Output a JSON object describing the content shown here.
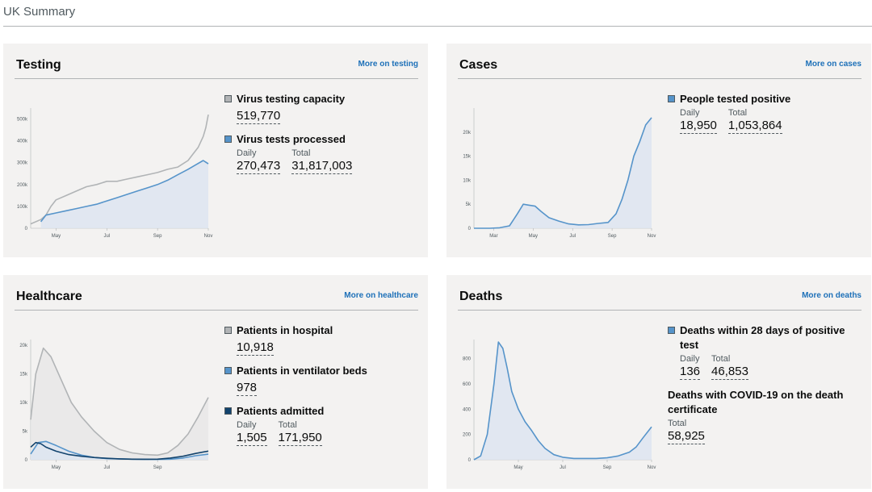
{
  "page": {
    "title": "UK Summary"
  },
  "cards": {
    "testing": {
      "title": "Testing",
      "link": "More on testing",
      "metrics": {
        "capacity": {
          "label": "Virus testing capacity",
          "value": "519,770"
        },
        "processed": {
          "label": "Virus tests processed",
          "daily_label": "Daily",
          "daily": "270,473",
          "total_label": "Total",
          "total": "31,817,003"
        }
      }
    },
    "cases": {
      "title": "Cases",
      "link": "More on cases",
      "metrics": {
        "positive": {
          "label": "People tested positive",
          "daily_label": "Daily",
          "daily": "18,950",
          "total_label": "Total",
          "total": "1,053,864"
        }
      }
    },
    "healthcare": {
      "title": "Healthcare",
      "link": "More on healthcare",
      "metrics": {
        "hospital": {
          "label": "Patients in hospital",
          "value": "10,918"
        },
        "ventilator": {
          "label": "Patients in ventilator beds",
          "value": "978"
        },
        "admitted": {
          "label": "Patients admitted",
          "daily_label": "Daily",
          "daily": "1,505",
          "total_label": "Total",
          "total": "171,950"
        }
      }
    },
    "deaths": {
      "title": "Deaths",
      "link": "More on deaths",
      "metrics": {
        "within28": {
          "label": "Deaths within 28 days of positive test",
          "daily_label": "Daily",
          "daily": "136",
          "total_label": "Total",
          "total": "46,853"
        },
        "certificate": {
          "label": "Deaths with COVID-19 on the death certificate",
          "total_label": "Total",
          "total": "58,925"
        }
      }
    }
  },
  "colors": {
    "grey": "#b1b4b6",
    "blue": "#5694ca",
    "navy": "#12436d",
    "fill": "#dde5f1",
    "link": "#1d70b8"
  },
  "chart_data": [
    {
      "id": "testing",
      "type": "line",
      "x_ticks": [
        "May",
        "Jul",
        "Sep",
        "Nov"
      ],
      "x_tick_pos": [
        1,
        3,
        5,
        7
      ],
      "xlim": [
        0,
        7
      ],
      "ylim": [
        0,
        550000
      ],
      "y_ticks": [
        0,
        100000,
        200000,
        300000,
        400000,
        500000
      ],
      "y_tick_labels": [
        "0",
        "100k",
        "200k",
        "300k",
        "400k",
        "500k"
      ],
      "series": [
        {
          "name": "Virus testing capacity",
          "color": "#b1b4b6",
          "fill": false,
          "x": [
            0,
            0.4,
            0.6,
            0.8,
            1,
            1.4,
            1.8,
            2.2,
            2.6,
            3,
            3.4,
            3.8,
            4.2,
            4.6,
            5,
            5.4,
            5.8,
            6.2,
            6.4,
            6.6,
            6.8,
            6.9,
            7
          ],
          "y": [
            20000,
            40000,
            60000,
            100000,
            130000,
            150000,
            170000,
            190000,
            200000,
            215000,
            215000,
            225000,
            235000,
            245000,
            255000,
            270000,
            280000,
            310000,
            340000,
            370000,
            420000,
            460000,
            520000
          ]
        },
        {
          "name": "Virus tests processed",
          "color": "#5694ca",
          "fill": true,
          "x": [
            0.4,
            0.6,
            1,
            1.4,
            1.8,
            2.2,
            2.6,
            3,
            3.4,
            3.8,
            4.2,
            4.6,
            5,
            5.4,
            5.8,
            6.2,
            6.5,
            6.8,
            7
          ],
          "y": [
            30000,
            60000,
            70000,
            80000,
            90000,
            100000,
            110000,
            125000,
            140000,
            155000,
            170000,
            185000,
            200000,
            220000,
            245000,
            270000,
            290000,
            310000,
            295000
          ]
        }
      ]
    },
    {
      "id": "cases",
      "type": "area",
      "x_ticks": [
        "Mar",
        "May",
        "Jul",
        "Sep",
        "Nov"
      ],
      "x_tick_pos": [
        1,
        3,
        5,
        7,
        9
      ],
      "xlim": [
        0,
        9
      ],
      "ylim": [
        0,
        25000
      ],
      "y_ticks": [
        0,
        5000,
        10000,
        15000,
        20000
      ],
      "y_tick_labels": [
        "0",
        "5k",
        "10k",
        "15k",
        "20k"
      ],
      "series": [
        {
          "name": "People tested positive",
          "color": "#5694ca",
          "fill": true,
          "x": [
            0,
            0.8,
            1.3,
            1.8,
            2.2,
            2.5,
            2.8,
            3.1,
            3.4,
            3.8,
            4.3,
            4.8,
            5.3,
            5.8,
            6.3,
            6.8,
            7.2,
            7.5,
            7.8,
            8.1,
            8.4,
            8.7,
            9
          ],
          "y": [
            0,
            0,
            100,
            500,
            3000,
            5000,
            4800,
            4600,
            3500,
            2200,
            1500,
            900,
            700,
            750,
            1000,
            1200,
            3000,
            6000,
            10000,
            15000,
            18000,
            21500,
            23000
          ]
        }
      ]
    },
    {
      "id": "healthcare",
      "type": "line",
      "x_ticks": [
        "May",
        "Jul",
        "Sep"
      ],
      "x_tick_pos": [
        1,
        3,
        5
      ],
      "xlim": [
        0,
        7
      ],
      "ylim": [
        0,
        21000
      ],
      "y_ticks": [
        0,
        5000,
        10000,
        15000,
        20000
      ],
      "y_tick_labels": [
        "0",
        "5k",
        "10k",
        "15k",
        "20k"
      ],
      "series": [
        {
          "name": "Patients in hospital",
          "color": "#b1b4b6",
          "fill": true,
          "x": [
            0,
            0.2,
            0.5,
            0.8,
            1.2,
            1.6,
            2.0,
            2.5,
            3.0,
            3.5,
            4.0,
            4.5,
            5.0,
            5.4,
            5.8,
            6.2,
            6.6,
            7
          ],
          "y": [
            7000,
            15000,
            19500,
            18000,
            14000,
            10000,
            7500,
            5000,
            3000,
            1800,
            1200,
            900,
            800,
            1200,
            2500,
            4500,
            7500,
            10900
          ]
        },
        {
          "name": "Patients in ventilator beds",
          "color": "#5694ca",
          "fill": true,
          "x": [
            0,
            0.3,
            0.6,
            1.0,
            1.5,
            2.0,
            2.5,
            3.0,
            3.5,
            4.0,
            4.5,
            5.0,
            5.5,
            6.0,
            6.5,
            7
          ],
          "y": [
            1000,
            3000,
            3200,
            2500,
            1500,
            800,
            400,
            200,
            150,
            100,
            80,
            60,
            100,
            300,
            700,
            978
          ]
        },
        {
          "name": "Patients admitted",
          "color": "#12436d",
          "fill": false,
          "x": [
            0,
            0.2,
            0.4,
            0.6,
            1.0,
            1.5,
            2.0,
            2.5,
            3.0,
            3.5,
            4.0,
            4.5,
            5.0,
            5.5,
            6.0,
            6.5,
            7
          ],
          "y": [
            2200,
            3000,
            2800,
            2200,
            1500,
            900,
            600,
            400,
            250,
            150,
            100,
            80,
            100,
            300,
            600,
            1100,
            1505
          ]
        }
      ]
    },
    {
      "id": "deaths",
      "type": "area",
      "x_ticks": [
        "May",
        "Jul",
        "Sep",
        "Nov"
      ],
      "x_tick_pos": [
        2,
        4,
        6,
        8
      ],
      "xlim": [
        0,
        8
      ],
      "ylim": [
        0,
        950
      ],
      "y_ticks": [
        0,
        200,
        400,
        600,
        800
      ],
      "y_tick_labels": [
        "0",
        "200",
        "400",
        "600",
        "800"
      ],
      "series": [
        {
          "name": "Deaths within 28 days of positive test",
          "color": "#5694ca",
          "fill": true,
          "x": [
            0,
            0.3,
            0.6,
            0.9,
            1.1,
            1.3,
            1.5,
            1.7,
            2.0,
            2.3,
            2.6,
            2.9,
            3.2,
            3.6,
            4.0,
            4.5,
            5.0,
            5.5,
            6.0,
            6.5,
            7.0,
            7.3,
            7.6,
            8
          ],
          "y": [
            0,
            30,
            200,
            600,
            930,
            880,
            720,
            540,
            400,
            300,
            230,
            150,
            90,
            40,
            20,
            10,
            10,
            10,
            15,
            30,
            60,
            100,
            170,
            260
          ]
        }
      ]
    }
  ]
}
